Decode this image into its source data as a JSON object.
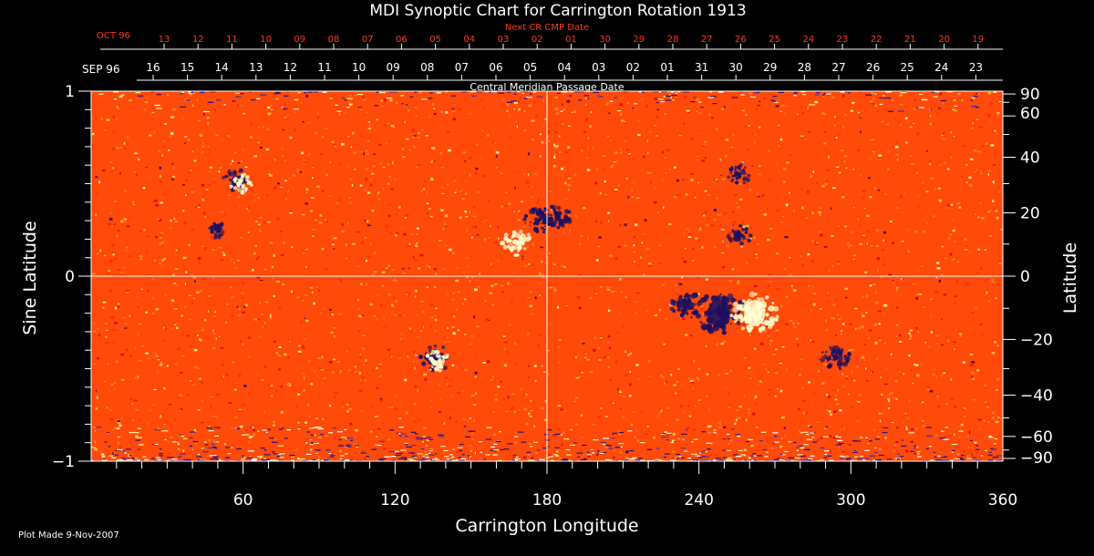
{
  "chart_data": {
    "type": "heatmap",
    "title": "MDI Synoptic Chart for Carrington Rotation 1913",
    "xlabel": "Carrington Longitude",
    "ylabel_left": "Sine Latitude",
    "ylabel_right": "Latitude",
    "xlim": [
      0,
      360
    ],
    "ylim_sine": [
      -1,
      1
    ],
    "x_ticks": [
      60,
      120,
      180,
      240,
      300,
      360
    ],
    "left_ticks": [
      {
        "label": "1",
        "value": 1
      },
      {
        "label": "0",
        "value": 0
      },
      {
        "label": "−1",
        "value": -1
      }
    ],
    "right_ticks": [
      {
        "label": "90",
        "deg": 90
      },
      {
        "label": "60",
        "deg": 60
      },
      {
        "label": "40",
        "deg": 40
      },
      {
        "label": "20",
        "deg": 20
      },
      {
        "label": "0",
        "deg": 0
      },
      {
        "label": "−20",
        "deg": -20
      },
      {
        "label": "−40",
        "deg": -40
      },
      {
        "label": "−60",
        "deg": -60
      },
      {
        "label": "−90",
        "deg": -90
      }
    ],
    "top_axis": {
      "label": "Central Meridian Passage Date",
      "month_label": "SEP 96",
      "dates": [
        "16",
        "15",
        "14",
        "13",
        "12",
        "11",
        "10",
        "09",
        "08",
        "07",
        "06",
        "05",
        "04",
        "03",
        "02",
        "01",
        "31",
        "30",
        "29",
        "28",
        "27",
        "26",
        "25",
        "24",
        "23"
      ]
    },
    "next_cr_axis": {
      "label": "Next CR CMP Date",
      "month_label": "OCT 96",
      "dates": [
        "13",
        "12",
        "11",
        "10",
        "09",
        "08",
        "07",
        "06",
        "05",
        "04",
        "03",
        "02",
        "01",
        "30",
        "29",
        "28",
        "27",
        "26",
        "25",
        "24",
        "23",
        "22",
        "21",
        "20",
        "19"
      ]
    },
    "regions": [
      {
        "lon": 248,
        "sinlat": -0.2,
        "polarity": "negative",
        "strength": 1.0
      },
      {
        "lon": 262,
        "sinlat": -0.2,
        "polarity": "positive",
        "strength": 0.9
      },
      {
        "lon": 235,
        "sinlat": -0.16,
        "polarity": "negative",
        "strength": 0.5
      },
      {
        "lon": 177,
        "sinlat": 0.3,
        "polarity": "negative",
        "strength": 0.5
      },
      {
        "lon": 168,
        "sinlat": 0.18,
        "polarity": "positive",
        "strength": 0.5
      },
      {
        "lon": 184,
        "sinlat": 0.32,
        "polarity": "negative",
        "strength": 0.4
      },
      {
        "lon": 136,
        "sinlat": -0.44,
        "polarity": "negative",
        "strength": 0.5
      },
      {
        "lon": 137,
        "sinlat": -0.46,
        "polarity": "positive",
        "strength": 0.35
      },
      {
        "lon": 294,
        "sinlat": -0.44,
        "polarity": "negative",
        "strength": 0.45
      },
      {
        "lon": 57,
        "sinlat": 0.52,
        "polarity": "negative",
        "strength": 0.35
      },
      {
        "lon": 59,
        "sinlat": 0.5,
        "polarity": "positive",
        "strength": 0.3
      },
      {
        "lon": 256,
        "sinlat": 0.22,
        "polarity": "negative",
        "strength": 0.3
      },
      {
        "lon": 256,
        "sinlat": 0.55,
        "polarity": "negative",
        "strength": 0.3
      },
      {
        "lon": 50,
        "sinlat": 0.25,
        "polarity": "negative",
        "strength": 0.25
      }
    ],
    "colors": {
      "background": "#ff4a0a",
      "positive": "#ffffd0",
      "negative": "#1a1060",
      "grid": "#ffffff"
    },
    "grid_lines": {
      "meridian_lon": 180,
      "equator_sinlat": 0
    }
  },
  "footer": {
    "plot_made": "Plot Made  9-Nov-2007"
  }
}
